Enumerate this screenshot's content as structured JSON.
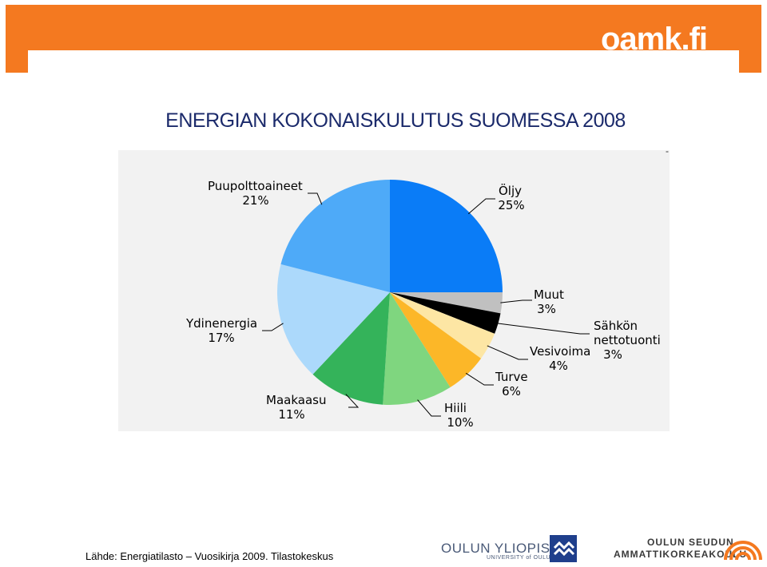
{
  "header": {
    "logo_text": "oamk.fi",
    "colors": {
      "banner": "#f47920"
    }
  },
  "chart_data": {
    "type": "pie",
    "title": "ENERGIAN KOKONAISKULUTUS SUOMESSA 2008",
    "unit": "%",
    "slices": [
      {
        "label": "Öljy",
        "value": 25,
        "value_text": "25%",
        "color": "#0a7cf7"
      },
      {
        "label": "Muut",
        "value": 3,
        "value_text": "3%",
        "color": "#c0c0c0"
      },
      {
        "label": "Sähkön nettotuonti",
        "label_lines": [
          "Sähkön",
          "nettotuonti"
        ],
        "value": 3,
        "value_text": "3%",
        "color": "#000000"
      },
      {
        "label": "Vesivoima",
        "value": 4,
        "value_text": "4%",
        "color": "#fde6a4"
      },
      {
        "label": "Turve",
        "value": 6,
        "value_text": "6%",
        "color": "#fcb728"
      },
      {
        "label": "Hiili",
        "value": 10,
        "value_text": "10%",
        "color": "#7fd67f"
      },
      {
        "label": "Maakaasu",
        "value": 11,
        "value_text": "11%",
        "color": "#34b35a"
      },
      {
        "label": "Ydinenergia",
        "value": 17,
        "value_text": "17%",
        "color": "#acd9fb"
      },
      {
        "label": "Puupolttoaineet",
        "value": 21,
        "value_text": "21%",
        "color": "#4eaaf8"
      }
    ]
  },
  "footer": {
    "source": "Lähde: Energiatilasto – Vuosikirja 2009. Tilastokeskus",
    "university_name": "OULUN YLIOPISTO",
    "university_sub": "UNIVERSITY of OULU",
    "school_line1": "OULUN SEUDUN",
    "school_line2": "AMMATTIKORKEAKOULU"
  }
}
